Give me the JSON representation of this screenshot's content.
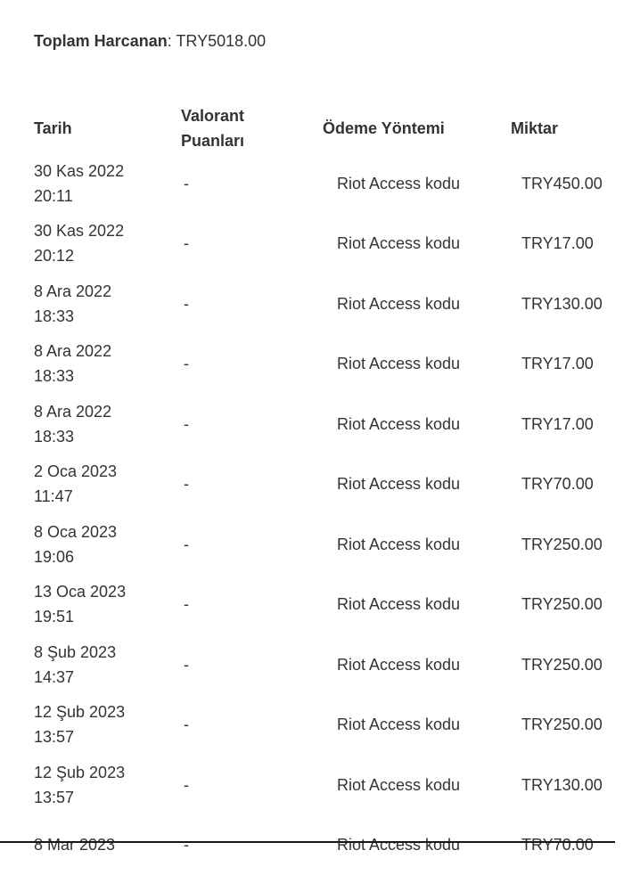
{
  "summary": {
    "total_label": "Toplam Harcanan",
    "total_separator": ": ",
    "total_value": "TRY5018.00"
  },
  "table": {
    "columns": [
      {
        "label": "Tarih"
      },
      {
        "label": "Valorant Puanları"
      },
      {
        "label": "Ödeme Yöntemi"
      },
      {
        "label": "Miktar"
      }
    ],
    "rows": [
      {
        "date": "30 Kas 2022",
        "time": "20:11",
        "valorant_points": "-",
        "payment_method": "Riot Access kodu",
        "amount": "TRY450.00"
      },
      {
        "date": "30 Kas 2022",
        "time": "20:12",
        "valorant_points": "-",
        "payment_method": "Riot Access kodu",
        "amount": "TRY17.00"
      },
      {
        "date": "8 Ara 2022",
        "time": "18:33",
        "valorant_points": "-",
        "payment_method": "Riot Access kodu",
        "amount": "TRY130.00"
      },
      {
        "date": "8 Ara 2022",
        "time": "18:33",
        "valorant_points": "-",
        "payment_method": "Riot Access kodu",
        "amount": "TRY17.00"
      },
      {
        "date": "8 Ara 2022",
        "time": "18:33",
        "valorant_points": "-",
        "payment_method": "Riot Access kodu",
        "amount": "TRY17.00"
      },
      {
        "date": "2 Oca 2023",
        "time": "11:47",
        "valorant_points": "-",
        "payment_method": "Riot Access kodu",
        "amount": "TRY70.00"
      },
      {
        "date": "8 Oca 2023",
        "time": "19:06",
        "valorant_points": "-",
        "payment_method": "Riot Access kodu",
        "amount": "TRY250.00"
      },
      {
        "date": "13 Oca 2023",
        "time": "19:51",
        "valorant_points": "-",
        "payment_method": "Riot Access kodu",
        "amount": "TRY250.00"
      },
      {
        "date": "8 Şub 2023",
        "time": "14:37",
        "valorant_points": "-",
        "payment_method": "Riot Access kodu",
        "amount": "TRY250.00"
      },
      {
        "date": "12 Şub 2023",
        "time": "13:57",
        "valorant_points": "-",
        "payment_method": "Riot Access kodu",
        "amount": "TRY250.00"
      },
      {
        "date": "12 Şub 2023",
        "time": "13:57",
        "valorant_points": "-",
        "payment_method": "Riot Access kodu",
        "amount": "TRY130.00"
      },
      {
        "date": "8 Mar 2023",
        "time": "",
        "valorant_points": "-",
        "payment_method": "Riot Access kodu",
        "amount": "TRY70.00"
      }
    ]
  },
  "colors": {
    "text": "#333333",
    "page_background": "#ffffff",
    "bottom_rule": "#161616"
  }
}
